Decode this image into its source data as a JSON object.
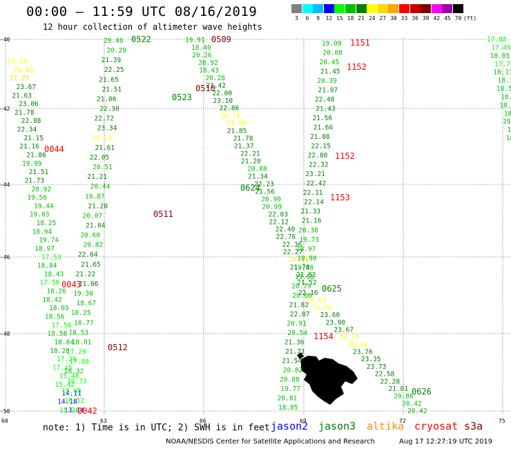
{
  "title": "00:00 – 11:59 UTC 08/16/2019",
  "subtitle": "12 hour collection of altimeter wave heights",
  "legend": {
    "unit": "(ft)",
    "entries": [
      {
        "label": "3",
        "color": "#808080"
      },
      {
        "label": "6",
        "color": "#00ffff"
      },
      {
        "label": "9",
        "color": "#00bfff"
      },
      {
        "label": "12",
        "color": "#0000ff"
      },
      {
        "label": "15",
        "color": "#00ff00"
      },
      {
        "label": "18",
        "color": "#00c000"
      },
      {
        "label": "21",
        "color": "#008000"
      },
      {
        "label": "24",
        "color": "#ffff00"
      },
      {
        "label": "27",
        "color": "#ffd700"
      },
      {
        "label": "30",
        "color": "#ffa500"
      },
      {
        "label": "33",
        "color": "#ff0000"
      },
      {
        "label": "36",
        "color": "#c00000"
      },
      {
        "label": "39",
        "color": "#800000"
      },
      {
        "label": "42",
        "color": "#ff00ff"
      },
      {
        "label": "45",
        "color": "#a000a0"
      },
      {
        "label": "70",
        "color": "#000000"
      }
    ]
  },
  "axes": {
    "lat_labels": [
      "-40",
      "-42",
      "-44",
      "-46",
      "-48",
      "-50"
    ],
    "lon_labels": [
      "60",
      "63",
      "66",
      "69",
      "72",
      "75"
    ]
  },
  "time_labels": [
    {
      "text": "0509",
      "color": "#800000"
    },
    {
      "text": "0510",
      "color": "#800000"
    },
    {
      "text": "0511",
      "color": "#800000"
    },
    {
      "text": "0512",
      "color": "#800000"
    },
    {
      "text": "0522",
      "color": "#008000"
    },
    {
      "text": "0523",
      "color": "#008000"
    },
    {
      "text": "0624",
      "color": "#008000"
    },
    {
      "text": "0625",
      "color": "#008000"
    },
    {
      "text": "0626",
      "color": "#008000"
    },
    {
      "text": "0042",
      "color": "#ff0000"
    },
    {
      "text": "0043",
      "color": "#ff0000"
    },
    {
      "text": "0044",
      "color": "#ff0000"
    },
    {
      "text": "1151",
      "color": "#ff0000"
    },
    {
      "text": "1152",
      "color": "#ff0000"
    },
    {
      "text": "1152",
      "color": "#ff0000"
    },
    {
      "text": "1153",
      "color": "#ff0000"
    },
    {
      "text": "1154",
      "color": "#ff0000"
    }
  ],
  "tracks": {
    "track_0044": [
      "24.34",
      "24.08",
      "27.27",
      "23.67",
      "21.63",
      "23.06",
      "21.78",
      "22.88",
      "22.34",
      "21.15",
      "21.16",
      "21.86",
      "19.99",
      "21.51",
      "21.73",
      "20.92",
      "19.56",
      "19.44",
      "19.03",
      "18.25",
      "18.94",
      "19.74",
      "18.97",
      "17.53",
      "18.84",
      "18.43",
      "17.50",
      "18.26",
      "18.42",
      "18.03",
      "18.56",
      "17.58",
      "18.58",
      "18.84",
      "18.20",
      "17.26",
      "17.45",
      "15.48",
      "15.42",
      "14.11",
      "14.18",
      "13.14"
    ],
    "track_0512": [
      "20.46",
      "20.29",
      "21.39",
      "22.25",
      "21.65",
      "21.51",
      "21.06",
      "22.30",
      "22.72",
      "23.34",
      "24.13",
      "21.61",
      "22.05",
      "20.51",
      "21.21",
      "20.44",
      "19.87",
      "21.28",
      "20.07",
      "21.04",
      "20.60",
      "20.82",
      "22.64",
      "21.65",
      "21.22",
      "21.06",
      "19.30",
      "18.67",
      "18.25",
      "18.77",
      "18.53",
      "18.01",
      "17.29",
      "17.88",
      "18.32",
      "16.73",
      "15.05",
      "16.52",
      "15.26"
    ],
    "track_0624": [
      "19.91",
      "18.40",
      "20.26",
      "20.92",
      "18.43",
      "20.28",
      "21.42",
      "22.00",
      "23.10",
      "22.86",
      "24.74",
      "24.90",
      "21.85",
      "21.78",
      "21.37",
      "22.21",
      "21.20",
      "20.88",
      "21.34",
      "22.23",
      "21.56",
      "20.90",
      "20.99",
      "22.03",
      "22.12",
      "22.40",
      "22.76",
      "22.36",
      "22.27",
      "24.08",
      "21.78",
      "21.82",
      "21.52"
    ],
    "track_1152": [
      "19.09",
      "20.08",
      "20.45",
      "21.45",
      "20.39",
      "21.97",
      "22.48",
      "21.43",
      "21.56",
      "21.66",
      "21.88",
      "22.15",
      "22.80",
      "22.32",
      "23.21",
      "22.42",
      "22.11",
      "22.14",
      "21.33",
      "21.16",
      "20.38",
      "19.73",
      "18.97",
      "19.90",
      "19.48",
      "19.68",
      "20.79",
      "20.60",
      "21.82",
      "22.87",
      "20.91",
      "20.54",
      "21.36",
      "21.71",
      "21.54",
      "20.82",
      "20.88",
      "19.77",
      "20.81",
      "18.85"
    ],
    "track_0626": [
      "22.16",
      "24.97",
      "24.35",
      "23.60",
      "23.90",
      "23.67",
      "24.24",
      "24.39",
      "23.76",
      "23.35",
      "23.73",
      "22.58",
      "22.28",
      "21.01",
      "20.86",
      "20.42",
      "20.42"
    ],
    "track_right": [
      "17.83",
      "17.49",
      "18.05",
      "17.74",
      "18.11",
      "18.30",
      "18.56",
      "18.94",
      "18.59",
      "18.46",
      "19.36",
      "19.1",
      "18.1",
      "18"
    ]
  },
  "note": {
    "text": "note: 1) Time is in UTC; 2) SWH is in feet",
    "satellites": [
      {
        "name": "jason2",
        "color": "#0000ff"
      },
      {
        "name": "jason3",
        "color": "#008000"
      },
      {
        "name": "altika",
        "color": "#ff8c00"
      },
      {
        "name": "cryosat",
        "color": "#ff0000"
      },
      {
        "name": "s3a",
        "color": "#800000"
      }
    ]
  },
  "credit": "NOAA/NESDIS Center for Satellite Applications and Research",
  "timestamp": "Aug 17 12:27:19 UTC 2019"
}
